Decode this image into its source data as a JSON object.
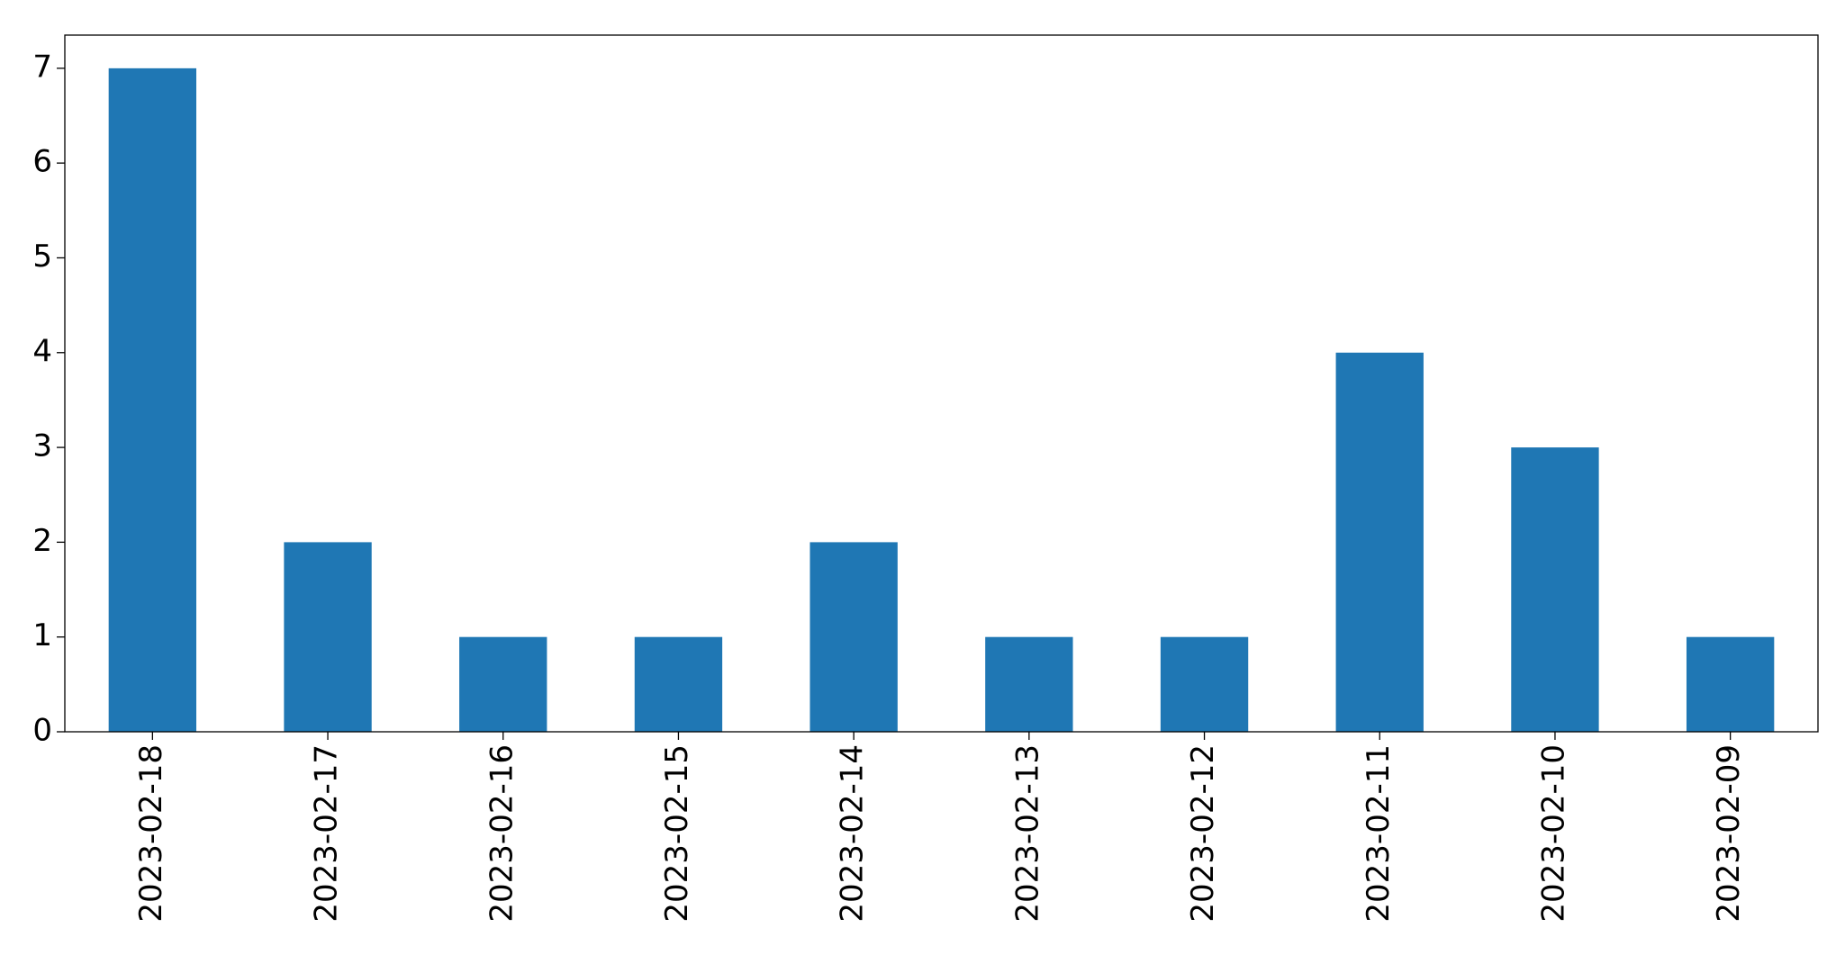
{
  "chart_data": {
    "type": "bar",
    "categories": [
      "2023-02-18",
      "2023-02-17",
      "2023-02-16",
      "2023-02-15",
      "2023-02-14",
      "2023-02-13",
      "2023-02-12",
      "2023-02-11",
      "2023-02-10",
      "2023-02-09"
    ],
    "values": [
      7,
      2,
      1,
      1,
      2,
      1,
      1,
      4,
      3,
      1
    ],
    "color": "#1f77b4",
    "ylim": [
      0,
      7.35
    ],
    "yticks": [
      0,
      1,
      2,
      3,
      4,
      5,
      6,
      7
    ],
    "grid": false
  }
}
